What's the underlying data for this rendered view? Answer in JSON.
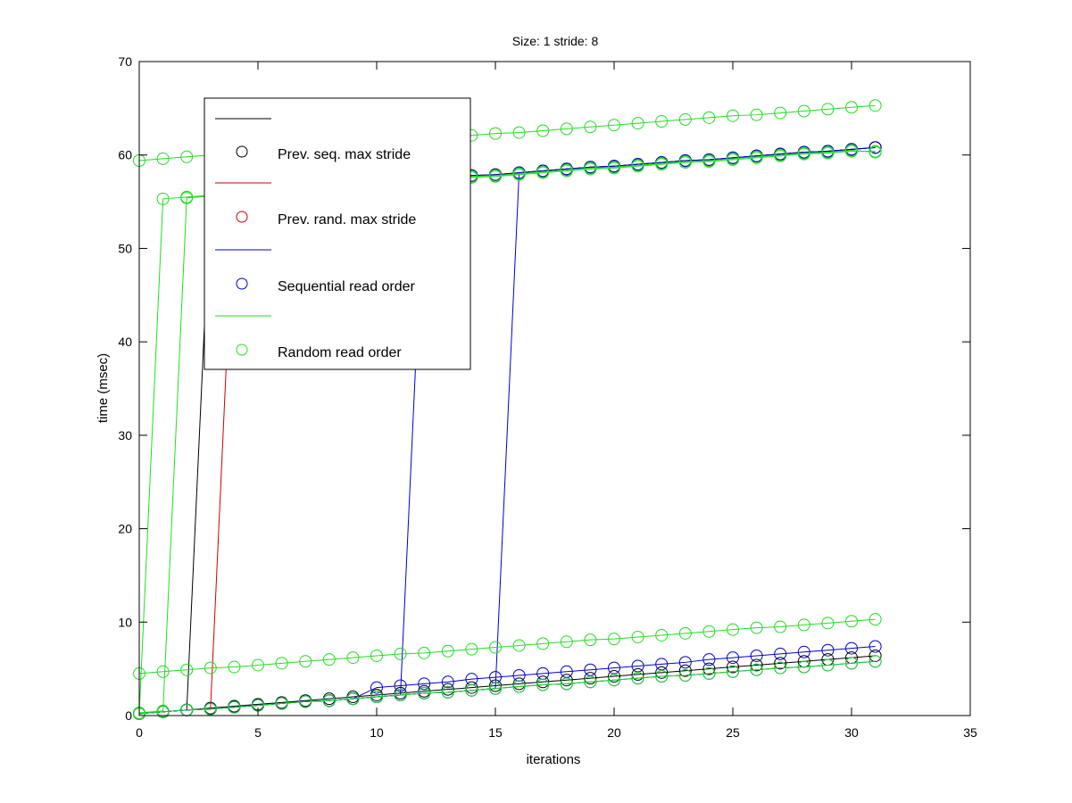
{
  "chart_data": {
    "type": "line",
    "title": "Size: 1 stride: 8",
    "xlabel": "iterations",
    "ylabel": "time (msec)",
    "xlim": [
      0,
      35
    ],
    "ylim": [
      0,
      70
    ],
    "xticks": [
      0,
      5,
      10,
      15,
      20,
      25,
      30,
      35
    ],
    "yticks": [
      0,
      10,
      20,
      30,
      40,
      50,
      60,
      70
    ],
    "grid": false,
    "legend_position": "top-left",
    "legend": [
      {
        "label": "Prev. seq. max stride",
        "color": "#000000"
      },
      {
        "label": "Prev. rand. max stride",
        "color": "#cc0000"
      },
      {
        "label": "Sequential read order",
        "color": "#0000cc"
      },
      {
        "label": "Random read order",
        "color": "#22dd22"
      }
    ],
    "x": [
      0,
      1,
      2,
      3,
      4,
      5,
      6,
      7,
      8,
      9,
      10,
      11,
      12,
      13,
      14,
      15,
      16,
      17,
      18,
      19,
      20,
      21,
      22,
      23,
      24,
      25,
      26,
      27,
      28,
      29,
      30,
      31
    ],
    "series": [
      {
        "name": "Prev. seq. max stride",
        "color": "#000000",
        "values": [
          0.2,
          0.4,
          0.6,
          0.8,
          1.0,
          1.2,
          1.4,
          1.6,
          1.8,
          2.0,
          2.2,
          2.4,
          2.6,
          2.8,
          3.0,
          3.2,
          3.4,
          3.6,
          3.8,
          4.0,
          4.2,
          4.4,
          4.6,
          4.8,
          5.0,
          5.2,
          5.4,
          5.6,
          5.8,
          6.0,
          6.2,
          6.4
        ]
      },
      {
        "name": "Prev. seq. max stride",
        "color": "#000000",
        "values": [
          0.2,
          0.4,
          0.6,
          55.8,
          56.0,
          56.2,
          56.4,
          56.5,
          56.7,
          56.9,
          57.1,
          57.2,
          57.4,
          57.6,
          57.8,
          57.9,
          58.1,
          58.3,
          58.5,
          58.7,
          58.8,
          59.0,
          59.2,
          59.4,
          59.5,
          59.7,
          59.9,
          60.1,
          60.3,
          60.4,
          60.6,
          60.8
        ]
      },
      {
        "name": "Prev. rand. max stride",
        "color": "#cc0000",
        "values": [
          0.2,
          0.4,
          0.6,
          0.7,
          56.0,
          56.2,
          56.4,
          56.5,
          56.7,
          56.9,
          57.1,
          57.2,
          57.4,
          57.6,
          57.8,
          57.9,
          58.1,
          58.3,
          58.5,
          58.7,
          58.8,
          59.0,
          59.2,
          59.4,
          59.5,
          59.7,
          59.9,
          60.1,
          60.3,
          60.4,
          60.6,
          60.8
        ]
      },
      {
        "name": "Sequential read order",
        "color": "#0000cc",
        "values": [
          0.2,
          0.4,
          0.6,
          0.7,
          0.9,
          1.1,
          1.3,
          1.5,
          1.6,
          1.8,
          2.0,
          2.2,
          57.4,
          57.6,
          57.8,
          57.9,
          58.1,
          58.3,
          58.5,
          58.7,
          58.8,
          59.0,
          59.2,
          59.4,
          59.5,
          59.7,
          59.9,
          60.1,
          60.3,
          60.4,
          60.6,
          60.8
        ]
      },
      {
        "name": "Sequential read order",
        "color": "#0000cc",
        "values": [
          0.2,
          0.4,
          0.6,
          0.7,
          0.9,
          1.1,
          1.3,
          1.5,
          1.6,
          1.8,
          2.0,
          2.2,
          2.4,
          2.5,
          2.7,
          2.9,
          58.1,
          58.3,
          58.5,
          58.7,
          58.8,
          59.0,
          59.2,
          59.4,
          59.5,
          59.7,
          59.9,
          60.1,
          60.3,
          60.4,
          60.6,
          60.8
        ]
      },
      {
        "name": "Sequential read order",
        "color": "#0000cc",
        "values": [
          0.2,
          0.4,
          0.6,
          0.7,
          0.9,
          1.1,
          1.3,
          1.5,
          1.6,
          1.8,
          3.0,
          3.2,
          3.4,
          3.6,
          3.9,
          4.1,
          4.3,
          4.5,
          4.7,
          4.9,
          5.1,
          5.3,
          5.5,
          5.7,
          6.0,
          6.2,
          6.4,
          6.6,
          6.8,
          7.0,
          7.2,
          7.4
        ]
      },
      {
        "name": "Sequential read order",
        "color": "#0000cc",
        "values": [
          0.2,
          0.4,
          0.6,
          0.7,
          0.9,
          1.1,
          1.3,
          1.5,
          1.6,
          1.8,
          2.0,
          2.2,
          2.4,
          2.5,
          2.7,
          2.9,
          3.1,
          3.3,
          3.4,
          3.6,
          3.8,
          4.0,
          4.2,
          4.3,
          4.5,
          4.7,
          4.9,
          5.1,
          5.2,
          5.4,
          5.6,
          5.8
        ]
      },
      {
        "name": "Random read order",
        "color": "#22dd22",
        "values": [
          59.4,
          59.6,
          59.8,
          60.0,
          60.2,
          60.4,
          60.5,
          60.7,
          60.9,
          61.1,
          61.3,
          61.5,
          61.7,
          61.9,
          62.1,
          62.3,
          62.4,
          62.6,
          62.8,
          63.0,
          63.2,
          63.4,
          63.6,
          63.8,
          64.0,
          64.2,
          64.3,
          64.5,
          64.7,
          64.9,
          65.1,
          65.3
        ]
      },
      {
        "name": "Random read order",
        "color": "#22dd22",
        "values": [
          0.2,
          55.3,
          55.5,
          55.7,
          55.9,
          56.1,
          56.3,
          56.4,
          56.6,
          56.8,
          57.0,
          57.1,
          57.3,
          57.5,
          57.7,
          57.8,
          58.0,
          58.2,
          58.4,
          58.6,
          58.7,
          58.9,
          59.1,
          59.3,
          59.4,
          59.6,
          59.8,
          60.0,
          60.2,
          60.3,
          60.5,
          60.3
        ]
      },
      {
        "name": "Random read order",
        "color": "#22dd22",
        "values": [
          0.3,
          0.5,
          55.4,
          55.6,
          55.8,
          56.0,
          56.2,
          56.3,
          56.5,
          56.7,
          56.9,
          57.0,
          57.2,
          57.4,
          57.6,
          57.7,
          57.9,
          58.1,
          58.3,
          58.5,
          58.6,
          58.8,
          59.0,
          59.2,
          59.3,
          59.5,
          59.7,
          59.9,
          60.1,
          60.2,
          60.4,
          60.4
        ]
      },
      {
        "name": "Random read order",
        "color": "#22dd22",
        "values": [
          4.5,
          4.7,
          4.9,
          5.1,
          5.2,
          5.4,
          5.6,
          5.8,
          6.0,
          6.2,
          6.4,
          6.6,
          6.7,
          6.9,
          7.1,
          7.3,
          7.5,
          7.7,
          7.9,
          8.1,
          8.2,
          8.4,
          8.6,
          8.8,
          9.0,
          9.2,
          9.4,
          9.5,
          9.7,
          9.9,
          10.1,
          10.3
        ]
      },
      {
        "name": "Random read order",
        "color": "#22dd22",
        "values": [
          0.2,
          0.4,
          0.6,
          0.7,
          0.9,
          1.1,
          1.3,
          1.5,
          1.6,
          1.8,
          2.0,
          2.2,
          2.4,
          2.5,
          2.7,
          2.9,
          3.1,
          3.3,
          3.4,
          3.6,
          3.8,
          4.0,
          4.2,
          4.3,
          4.5,
          4.7,
          4.9,
          5.1,
          5.2,
          5.4,
          5.6,
          5.8
        ]
      }
    ]
  }
}
